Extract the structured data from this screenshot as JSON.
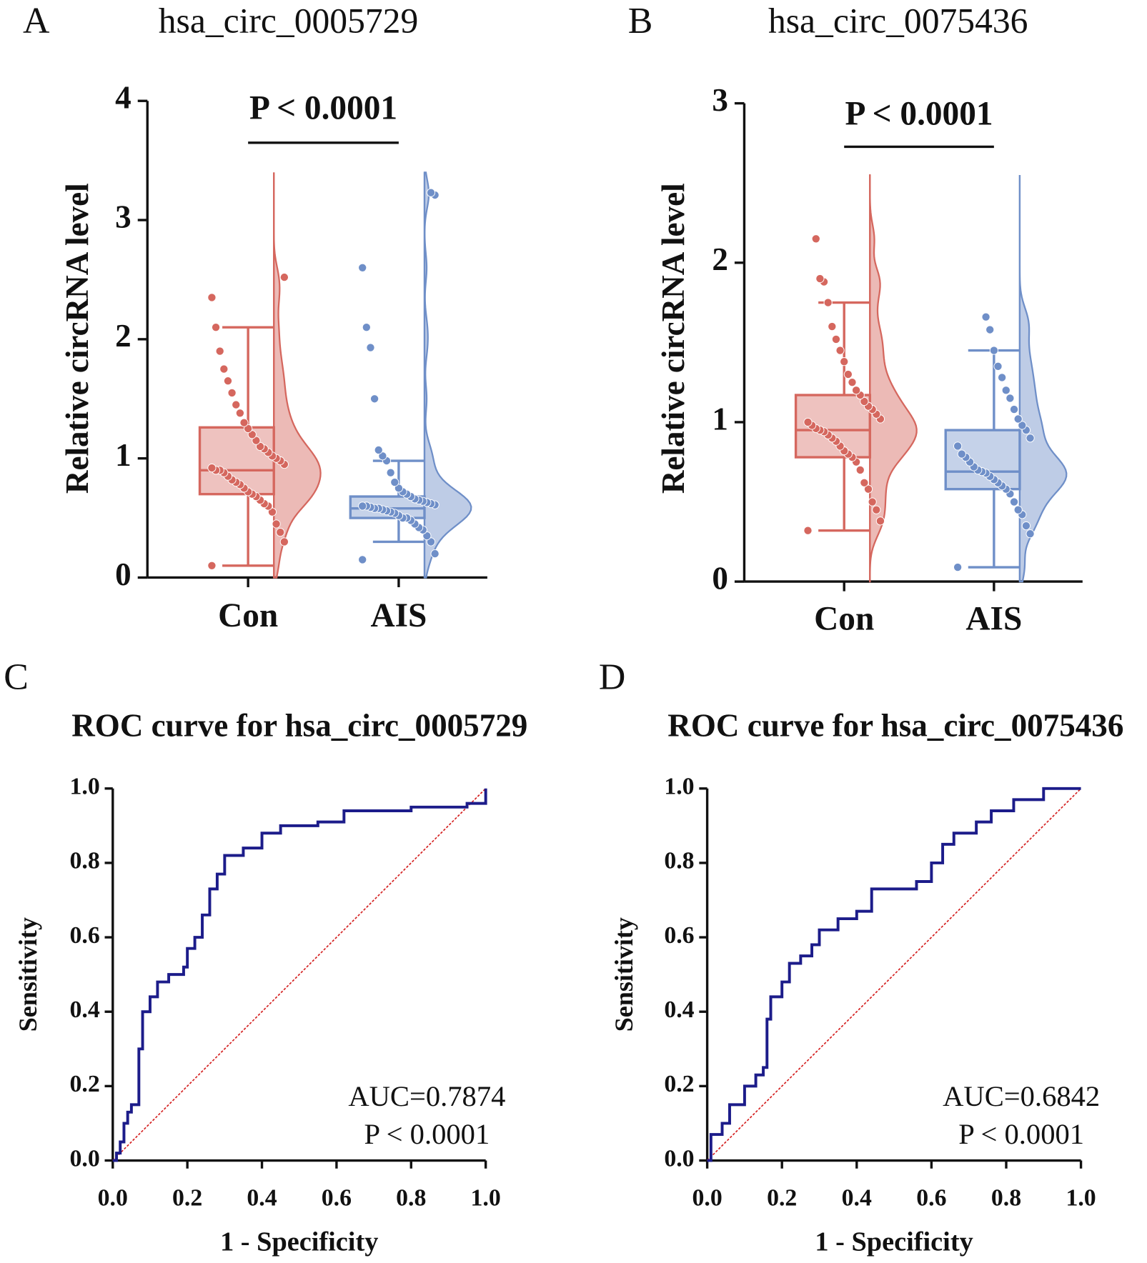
{
  "chart_data": [
    {
      "type": "box",
      "panel_label": "A",
      "title": "hsa_circ_0005729",
      "y_label": "Relative circRNA level",
      "significance": "P < 0.0001",
      "categories": [
        "Con",
        "AIS"
      ],
      "ylim": [
        0,
        4
      ],
      "yticks": [
        0,
        1,
        2,
        3,
        4
      ],
      "boxes": [
        {
          "color": "#d5675e",
          "min": 0.1,
          "q1": 0.7,
          "median": 0.9,
          "q3": 1.26,
          "max": 2.1,
          "points": [
            0.1,
            0.3,
            0.38,
            0.45,
            0.55,
            0.6,
            0.62,
            0.65,
            0.68,
            0.7,
            0.72,
            0.75,
            0.78,
            0.8,
            0.82,
            0.85,
            0.88,
            0.9,
            0.9,
            0.92,
            0.95,
            0.98,
            1.0,
            1.02,
            1.05,
            1.08,
            1.1,
            1.15,
            1.2,
            1.25,
            1.3,
            1.38,
            1.45,
            1.55,
            1.65,
            1.75,
            1.9,
            2.1,
            2.35,
            2.52
          ]
        },
        {
          "color": "#6f8fc8",
          "min": 0.3,
          "q1": 0.5,
          "median": 0.58,
          "q3": 0.68,
          "max": 0.98,
          "points": [
            0.15,
            0.2,
            0.3,
            0.35,
            0.4,
            0.42,
            0.45,
            0.48,
            0.5,
            0.5,
            0.52,
            0.54,
            0.55,
            0.56,
            0.57,
            0.58,
            0.58,
            0.59,
            0.6,
            0.6,
            0.61,
            0.62,
            0.63,
            0.64,
            0.65,
            0.66,
            0.68,
            0.7,
            0.72,
            0.75,
            0.8,
            0.88,
            0.98,
            1.02,
            1.07,
            1.5,
            1.93,
            2.1,
            2.6,
            3.21,
            3.23
          ]
        }
      ]
    },
    {
      "type": "box",
      "panel_label": "B",
      "title": "hsa_circ_0075436",
      "y_label": "Relative circRNA level",
      "significance": "P < 0.0001",
      "categories": [
        "Con",
        "AIS"
      ],
      "ylim": [
        0,
        3
      ],
      "yticks": [
        0,
        1,
        2,
        3
      ],
      "boxes": [
        {
          "color": "#d5675e",
          "min": 0.32,
          "q1": 0.78,
          "median": 0.95,
          "q3": 1.17,
          "max": 1.75,
          "points": [
            0.32,
            0.38,
            0.45,
            0.5,
            0.58,
            0.62,
            0.7,
            0.75,
            0.78,
            0.8,
            0.82,
            0.85,
            0.88,
            0.9,
            0.92,
            0.94,
            0.95,
            0.96,
            0.98,
            1.0,
            1.02,
            1.05,
            1.08,
            1.1,
            1.13,
            1.17,
            1.2,
            1.25,
            1.3,
            1.38,
            1.45,
            1.52,
            1.6,
            1.75,
            1.88,
            1.9,
            2.15
          ]
        },
        {
          "color": "#6f8fc8",
          "min": 0.09,
          "q1": 0.58,
          "median": 0.69,
          "q3": 0.95,
          "max": 1.45,
          "points": [
            0.09,
            0.3,
            0.35,
            0.42,
            0.45,
            0.5,
            0.55,
            0.58,
            0.6,
            0.62,
            0.64,
            0.66,
            0.68,
            0.69,
            0.7,
            0.72,
            0.75,
            0.78,
            0.8,
            0.85,
            0.9,
            0.95,
            0.98,
            1.02,
            1.08,
            1.15,
            1.2,
            1.28,
            1.35,
            1.45,
            1.58,
            1.66
          ]
        }
      ]
    },
    {
      "type": "line",
      "panel_label": "C",
      "title": "ROC curve for hsa_circ_0005729",
      "x_label": "1 - Specificity",
      "y_label": "Sensitivity",
      "annotations": [
        "AUC=0.7874",
        "P < 0.0001"
      ],
      "reference_line": true,
      "reference_color": "#d42020",
      "xlim": [
        0,
        1
      ],
      "ylim": [
        0,
        1
      ],
      "xticks": [
        {
          "value": 0,
          "label": "0.0"
        },
        0.2,
        0.4,
        0.6,
        0.8,
        {
          "value": 1,
          "label": "1.0"
        }
      ],
      "yticks": [
        {
          "value": 0,
          "label": "0.0"
        },
        0.2,
        0.4,
        0.6,
        0.8,
        {
          "value": 1,
          "label": "1.0"
        }
      ],
      "x": [
        0,
        0.01,
        0.02,
        0.03,
        0.04,
        0.05,
        0.065,
        0.07,
        0.08,
        0.1,
        0.12,
        0.15,
        0.19,
        0.2,
        0.22,
        0.24,
        0.26,
        0.28,
        0.3,
        0.35,
        0.4,
        0.45,
        0.55,
        0.62,
        0.8,
        0.95,
        1
      ],
      "series": [
        {
          "color": "#1c1c8a",
          "values": [
            0,
            0.02,
            0.05,
            0.1,
            0.13,
            0.15,
            0.15,
            0.3,
            0.4,
            0.44,
            0.48,
            0.5,
            0.52,
            0.57,
            0.6,
            0.66,
            0.73,
            0.77,
            0.82,
            0.84,
            0.88,
            0.9,
            0.91,
            0.94,
            0.95,
            0.96,
            1
          ]
        }
      ]
    },
    {
      "type": "line",
      "panel_label": "D",
      "title": "ROC curve for hsa_circ_0075436",
      "x_label": "1 - Specificity",
      "y_label": "Sensitivity",
      "annotations": [
        "AUC=0.6842",
        "P < 0.0001"
      ],
      "reference_line": true,
      "reference_color": "#d42020",
      "xlim": [
        0,
        1
      ],
      "ylim": [
        0,
        1
      ],
      "xticks": [
        {
          "value": 0,
          "label": "0.0"
        },
        0.2,
        0.4,
        0.6,
        0.8,
        {
          "value": 1,
          "label": "1.0"
        }
      ],
      "yticks": [
        {
          "value": 0,
          "label": "0.0"
        },
        0.2,
        0.4,
        0.6,
        0.8,
        {
          "value": 1,
          "label": "1.0"
        }
      ],
      "x": [
        0,
        0.01,
        0.04,
        0.06,
        0.1,
        0.13,
        0.15,
        0.16,
        0.17,
        0.2,
        0.22,
        0.25,
        0.28,
        0.3,
        0.35,
        0.4,
        0.44,
        0.52,
        0.56,
        0.6,
        0.63,
        0.66,
        0.72,
        0.76,
        0.82,
        0.9,
        1
      ],
      "series": [
        {
          "color": "#1c1c8a",
          "values": [
            0,
            0.07,
            0.1,
            0.15,
            0.2,
            0.23,
            0.25,
            0.38,
            0.44,
            0.48,
            0.53,
            0.55,
            0.58,
            0.62,
            0.65,
            0.67,
            0.73,
            0.73,
            0.75,
            0.8,
            0.85,
            0.88,
            0.91,
            0.94,
            0.97,
            1,
            1
          ]
        }
      ]
    }
  ]
}
